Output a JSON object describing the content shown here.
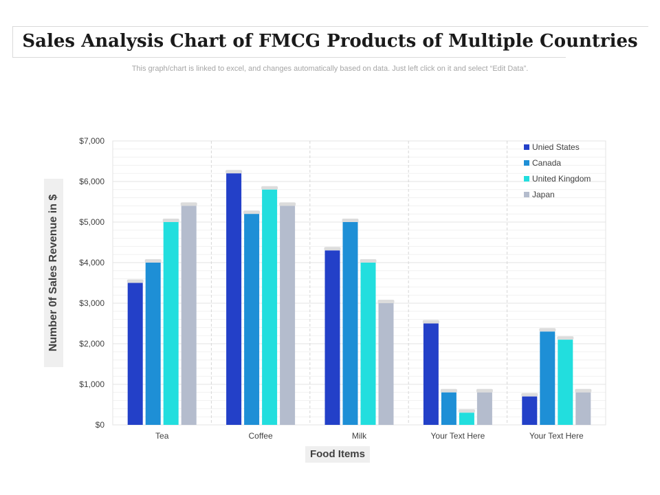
{
  "header": {
    "title": "Sales Analysis Chart of FMCG Products of Multiple Countries",
    "subtitle": "This graph/chart is linked to excel, and changes automatically based on data. Just left click on it and select “Edit Data”."
  },
  "chart_data": {
    "type": "bar",
    "title": "Sales Analysis Chart of FMCG Products of Multiple Countries",
    "xlabel": "Food Items",
    "ylabel": "Number 0f Sales Revenue in $",
    "categories": [
      "Tea",
      "Coffee",
      "Milk",
      "Your Text Here",
      "Your Text Here"
    ],
    "ylim": [
      0,
      7000
    ],
    "yticks": [
      0,
      1000,
      2000,
      3000,
      4000,
      5000,
      6000,
      7000
    ],
    "ytick_labels": [
      "$0",
      "$1,000",
      "$2,000",
      "$3,000",
      "$4,000",
      "$5,000",
      "$6,000",
      "$7,000"
    ],
    "legend_position": "top-right",
    "series": [
      {
        "name": "Unied States",
        "color": "#2340c8",
        "values": [
          3500,
          6200,
          4300,
          2500,
          700
        ]
      },
      {
        "name": "Canada",
        "color": "#1e8fd6",
        "values": [
          4000,
          5200,
          5000,
          800,
          2300
        ]
      },
      {
        "name": "United Kingdom",
        "color": "#22dede",
        "values": [
          5000,
          5800,
          4000,
          300,
          2100
        ]
      },
      {
        "name": "Japan",
        "color": "#b4bccd",
        "values": [
          5400,
          5400,
          3000,
          800,
          800
        ]
      }
    ]
  }
}
